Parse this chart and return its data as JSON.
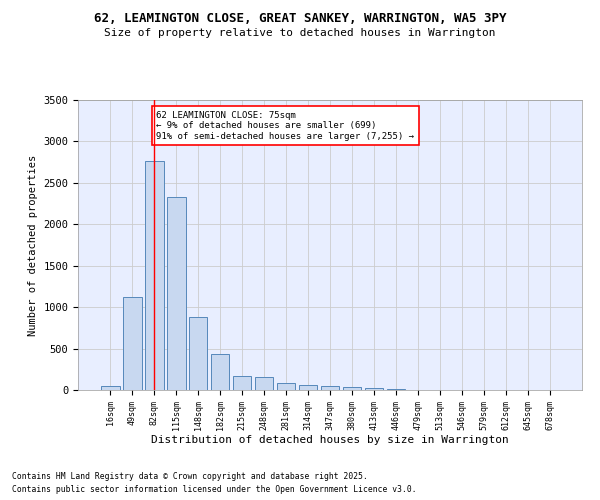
{
  "title1": "62, LEAMINGTON CLOSE, GREAT SANKEY, WARRINGTON, WA5 3PY",
  "title2": "Size of property relative to detached houses in Warrington",
  "xlabel": "Distribution of detached houses by size in Warrington",
  "ylabel": "Number of detached properties",
  "categories": [
    "16sqm",
    "49sqm",
    "82sqm",
    "115sqm",
    "148sqm",
    "182sqm",
    "215sqm",
    "248sqm",
    "281sqm",
    "314sqm",
    "347sqm",
    "380sqm",
    "413sqm",
    "446sqm",
    "479sqm",
    "513sqm",
    "546sqm",
    "579sqm",
    "612sqm",
    "645sqm",
    "678sqm"
  ],
  "values": [
    50,
    1120,
    2760,
    2330,
    880,
    440,
    170,
    160,
    85,
    60,
    45,
    35,
    28,
    8,
    5,
    0,
    0,
    0,
    0,
    0,
    0
  ],
  "bar_color": "#c8d8f0",
  "bar_edge_color": "#5588bb",
  "grid_color": "#cccccc",
  "bg_color": "#e8eeff",
  "vline_x_index": 2,
  "vline_color": "red",
  "annotation_text": "62 LEAMINGTON CLOSE: 75sqm\n← 9% of detached houses are smaller (699)\n91% of semi-detached houses are larger (7,255) →",
  "annotation_box_color": "white",
  "annotation_box_edge": "red",
  "ylim": [
    0,
    3500
  ],
  "footer1": "Contains HM Land Registry data © Crown copyright and database right 2025.",
  "footer2": "Contains public sector information licensed under the Open Government Licence v3.0."
}
